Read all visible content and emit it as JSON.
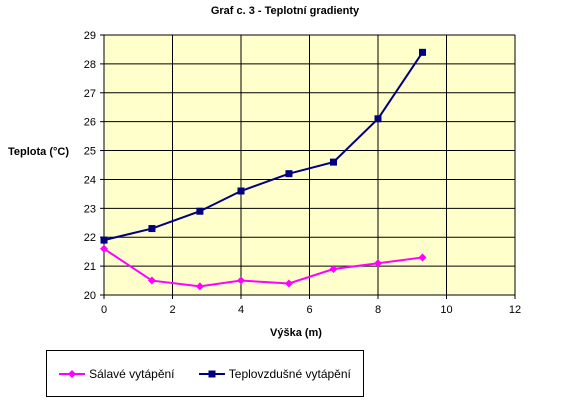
{
  "chart_data": {
    "type": "line",
    "title": "Graf c. 3 - Teplotní gradienty",
    "xlabel": "Výška (m)",
    "ylabel": "Teplota (°C)",
    "xlim": [
      0,
      12
    ],
    "ylim": [
      20,
      29
    ],
    "xticks": [
      0,
      2,
      4,
      6,
      8,
      10,
      12
    ],
    "yticks": [
      20,
      21,
      22,
      23,
      24,
      25,
      26,
      27,
      28,
      29
    ],
    "grid": true,
    "legend_position": "bottom-left",
    "background": "#ffffcc",
    "series": [
      {
        "name": "Sálavé vytápění",
        "color": "#ff00ff",
        "marker": "diamond",
        "x": [
          0,
          1.4,
          2.8,
          4.0,
          5.4,
          6.7,
          8.0,
          9.3
        ],
        "y": [
          21.6,
          20.5,
          20.3,
          20.5,
          20.4,
          20.9,
          21.1,
          21.3
        ]
      },
      {
        "name": "Teplovzdušné vytápění",
        "color": "#000080",
        "marker": "square",
        "x": [
          0,
          1.4,
          2.8,
          4.0,
          5.4,
          6.7,
          8.0,
          9.3
        ],
        "y": [
          21.9,
          22.3,
          22.9,
          23.6,
          24.2,
          24.6,
          26.1,
          28.4
        ]
      }
    ]
  }
}
